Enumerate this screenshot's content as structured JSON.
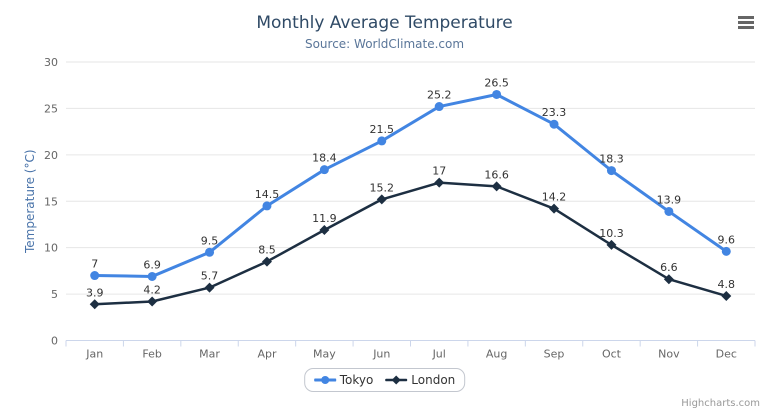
{
  "credits": "Highcharts.com",
  "icons": {
    "context_menu": "hamburger-menu-icon"
  },
  "chart_data": {
    "type": "line",
    "title": "Monthly Average Temperature",
    "subtitle": "Source: WorldClimate.com",
    "xlabel": "",
    "ylabel": "Temperature (°C)",
    "categories": [
      "Jan",
      "Feb",
      "Mar",
      "Apr",
      "May",
      "Jun",
      "Jul",
      "Aug",
      "Sep",
      "Oct",
      "Nov",
      "Dec"
    ],
    "ylim": [
      0,
      30
    ],
    "ytick_interval": 5,
    "grid": true,
    "legend_position": "bottom-center",
    "data_labels": true,
    "series": [
      {
        "name": "Tokyo",
        "color": "#4285e2",
        "marker": "circle",
        "line_width": 3,
        "values": [
          7,
          6.9,
          9.5,
          14.5,
          18.4,
          21.5,
          25.2,
          26.5,
          23.3,
          18.3,
          13.9,
          9.6
        ]
      },
      {
        "name": "London",
        "color": "#1d2f42",
        "marker": "diamond",
        "line_width": 2.5,
        "values": [
          3.9,
          4.2,
          5.7,
          8.5,
          11.9,
          15.2,
          17,
          16.6,
          14.2,
          10.3,
          6.6,
          4.8
        ]
      }
    ],
    "colors": {
      "title": "#2f4a66",
      "subtitle": "#5a7699",
      "yaxis_title": "#4a74aa",
      "grid": "#e6e6e6",
      "axis_line": "#ccd6eb",
      "tick_label": "#666666",
      "data_label": "#333333",
      "credits": "#999999",
      "menu_icon": "#666666"
    }
  }
}
